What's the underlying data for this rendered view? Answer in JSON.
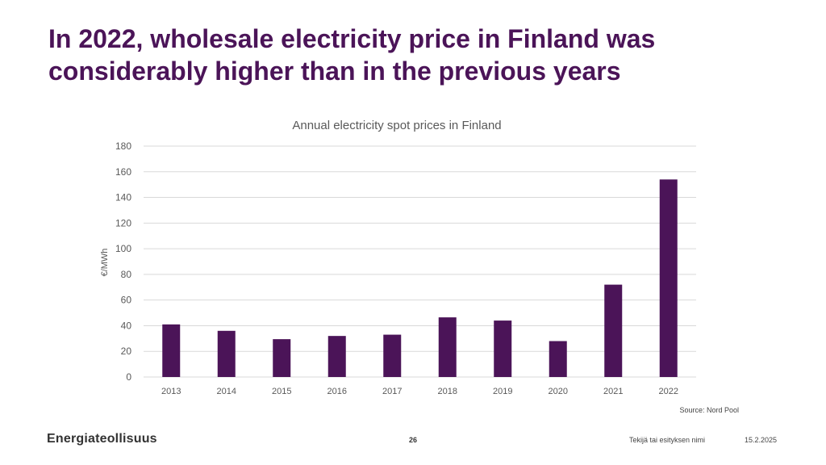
{
  "slide": {
    "title_line1": "In 2022, wholesale electricity price in Finland was",
    "title_line2": "considerably higher than in the previous years",
    "source": "Source: Nord Pool",
    "logo_text": "Energiateollisuus",
    "page_number": "26",
    "footer_author": "Tekijä tai esityksen nimi",
    "footer_date": "15.2.2025"
  },
  "colors": {
    "title": "#4b1458",
    "bar": "#4b1458",
    "grid": "#d9d9d9",
    "axis_text": "#595959"
  },
  "chart_data": {
    "type": "bar",
    "title": "Annual electricity spot prices in Finland",
    "xlabel": "",
    "ylabel": "€/MWh",
    "categories": [
      "2013",
      "2014",
      "2015",
      "2016",
      "2017",
      "2018",
      "2019",
      "2020",
      "2021",
      "2022"
    ],
    "values": [
      41,
      36,
      29.5,
      32,
      33,
      46.5,
      44,
      28,
      72,
      154
    ],
    "ylim": [
      0,
      180
    ],
    "yticks": [
      0,
      20,
      40,
      60,
      80,
      100,
      120,
      140,
      160,
      180
    ],
    "grid": true,
    "legend": "none"
  }
}
